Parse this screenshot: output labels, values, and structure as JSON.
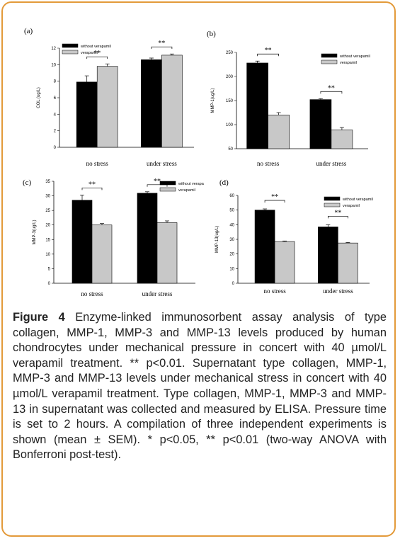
{
  "caption": {
    "figure_label": "Figure 4",
    "text": " Enzyme-linked immunosorbent assay analysis of type collagen, MMP-1, MMP-3 and MMP-13 levels produced by human chondrocytes under mechanical pressure in concert with 40 µmol/L verapamil treatment. ** p<0.01. Supernatant type collagen, MMP-1, MMP-3 and MMP-13 levels under mechanical stress in concert with 40 µmol/L verapamil treatment. Type collagen, MMP-1, MMP-3 and MMP-13 in supernatant was collected and measured by ELISA. Pressure time is set to 2 hours. A compilation of three independent experiments is shown (mean ± SEM). * p<0.05, ** p<0.01 (two-way ANOVA with Bonferroni post-test)."
  },
  "colors": {
    "without": "#000000",
    "with": "#c8c8c8",
    "border": "#e39a3a"
  },
  "chart_data": [
    {
      "panel": "(a)",
      "type": "bar",
      "ylabel": "COL (ug/L)",
      "categories": [
        "no stress",
        "under stress"
      ],
      "series": [
        {
          "name": "without verapamil",
          "values": [
            7.9,
            10.6
          ],
          "errors": [
            0.75,
            0.2
          ]
        },
        {
          "name": "verapamil",
          "values": [
            9.8,
            11.15
          ],
          "errors": [
            0.3,
            0.15
          ]
        }
      ],
      "ylim": [
        0,
        12
      ],
      "yticks": [
        "0",
        "2",
        "4",
        "6",
        "8",
        "10",
        "12"
      ],
      "significance": [
        "**",
        "**"
      ],
      "legend": "top-left"
    },
    {
      "panel": "(b)",
      "type": "bar",
      "ylabel": "MMP-1(ug/L)",
      "categories": [
        "no stress",
        "under stress"
      ],
      "series": [
        {
          "name": "without verapamil",
          "values": [
            228,
            152
          ],
          "errors": [
            4,
            2
          ]
        },
        {
          "name": "verapamil",
          "values": [
            120,
            89
          ],
          "errors": [
            5,
            5
          ]
        }
      ],
      "ylim": [
        50,
        250
      ],
      "yticks": [
        "50",
        "100",
        "150",
        "200",
        "250"
      ],
      "significance": [
        "**",
        "**"
      ],
      "legend": "top-right"
    },
    {
      "panel": "(c)",
      "type": "bar",
      "ylabel": "MMP-3(ug/L)",
      "categories": [
        "no stress",
        "under stress"
      ],
      "series": [
        {
          "name": "without verapamil",
          "values": [
            28.5,
            30.9
          ],
          "errors": [
            1.8,
            0.5
          ]
        },
        {
          "name": "verapamil",
          "values": [
            20.0,
            20.8
          ],
          "errors": [
            0.5,
            0.6
          ]
        }
      ],
      "ylim": [
        0,
        35
      ],
      "yticks": [
        "0",
        "5",
        "10",
        "15",
        "20",
        "25",
        "30",
        "35"
      ],
      "significance": [
        "**",
        "**"
      ],
      "legend": "top-right"
    },
    {
      "panel": "(d)",
      "type": "bar",
      "ylabel": "MMP-13(ug/L)",
      "categories": [
        "no stress",
        "under stress"
      ],
      "series": [
        {
          "name": "without verapamil",
          "values": [
            50,
            38.5
          ],
          "errors": [
            0.8,
            1.5
          ]
        },
        {
          "name": "verapamil",
          "values": [
            28.5,
            27.5
          ],
          "errors": [
            0.4,
            0.4
          ]
        }
      ],
      "ylim": [
        0,
        60
      ],
      "yticks": [
        "0",
        "10",
        "20",
        "30",
        "40",
        "50",
        "60"
      ],
      "significance": [
        "**",
        "**"
      ],
      "legend": "top-right"
    }
  ]
}
